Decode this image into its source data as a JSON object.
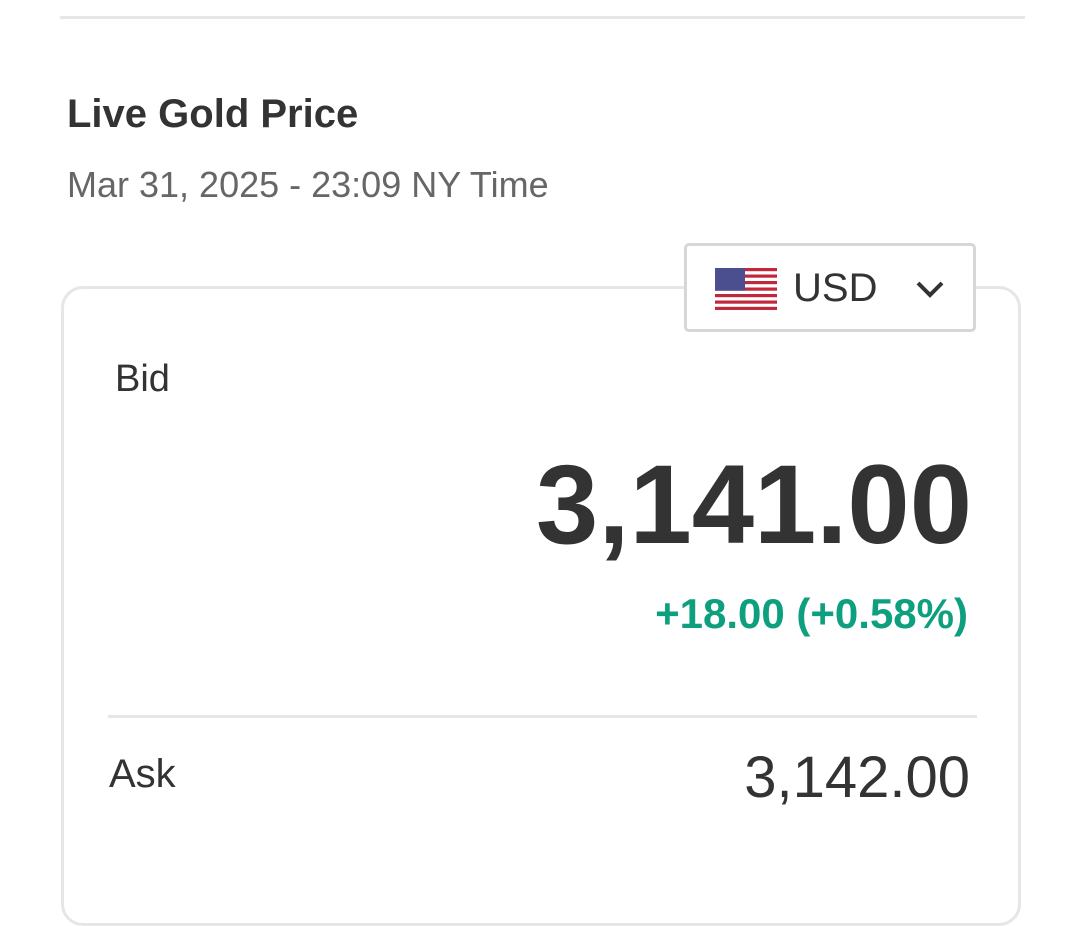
{
  "title": "Live Gold Price",
  "timestamp": "Mar 31, 2025 - 23:09 NY Time",
  "currency": {
    "selected": "USD",
    "icon": "us-flag-icon"
  },
  "bid": {
    "label": "Bid",
    "value": "3,141.00",
    "change": "+18.00 (+0.58%)",
    "change_color": "#0e9f7e"
  },
  "ask": {
    "label": "Ask",
    "value": "3,142.00"
  }
}
